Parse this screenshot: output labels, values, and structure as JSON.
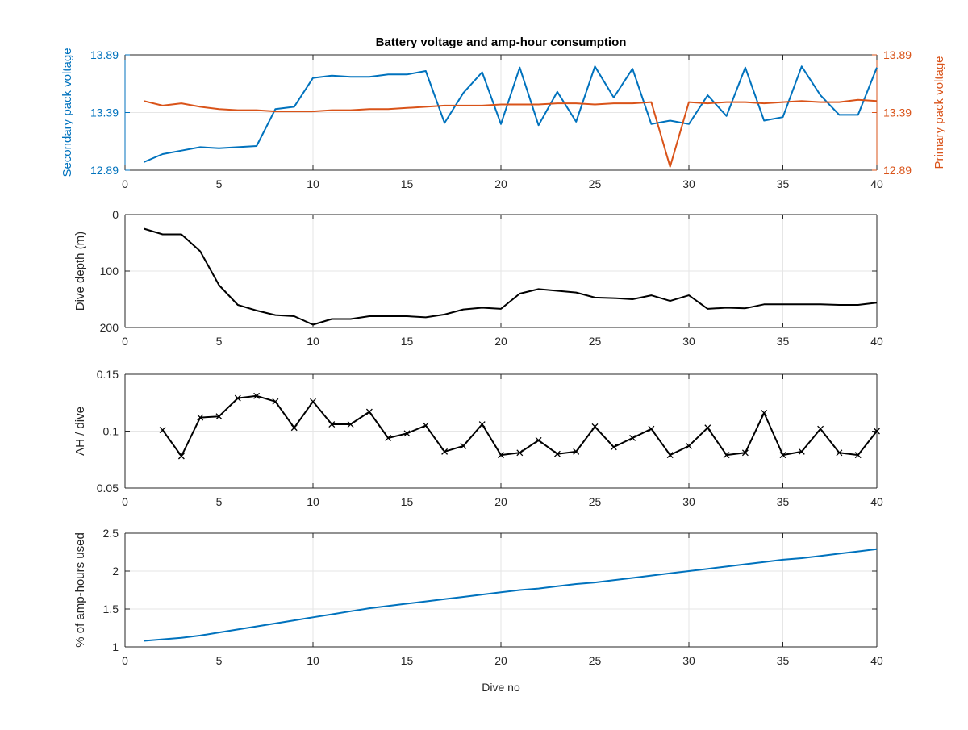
{
  "figure": {
    "title": "Battery voltage and amp-hour consumption",
    "xlabel": "Dive no"
  },
  "colors": {
    "secondary": "#0072BD",
    "primary": "#D95319",
    "black": "#000000",
    "grid": "#e6e6e6"
  },
  "chart_data": [
    {
      "type": "line",
      "title": "Battery voltage and amp-hour consumption",
      "xlabel": "",
      "ylabel": "Secondary pack voltage",
      "ylabel_right": "Primary pack voltage",
      "xlim": [
        0,
        40
      ],
      "ylim": [
        12.89,
        13.89
      ],
      "ylim_right": [
        12.89,
        13.89
      ],
      "xticks": [
        0,
        5,
        10,
        15,
        20,
        25,
        30,
        35,
        40
      ],
      "yticks": [
        12.89,
        13.39,
        13.89
      ],
      "ytick_labels": [
        "12.89",
        "13.39",
        "13.89"
      ],
      "yticks_right": [
        12.89,
        13.39,
        13.89
      ],
      "ytick_labels_right": [
        "12.89",
        "13.39",
        "13.89"
      ],
      "grid": true,
      "series": [
        {
          "name": "Secondary pack voltage",
          "axis": "left",
          "color": "#0072BD",
          "x": [
            1,
            2,
            3,
            4,
            5,
            6,
            7,
            8,
            9,
            10,
            11,
            12,
            13,
            14,
            15,
            16,
            17,
            18,
            19,
            20,
            21,
            22,
            23,
            24,
            25,
            26,
            27,
            28,
            29,
            30,
            31,
            32,
            33,
            34,
            35,
            36,
            37,
            38,
            39,
            40
          ],
          "values": [
            12.96,
            13.03,
            13.06,
            13.09,
            13.08,
            13.09,
            13.1,
            13.42,
            13.44,
            13.69,
            13.71,
            13.7,
            13.7,
            13.72,
            13.72,
            13.75,
            13.3,
            13.56,
            13.74,
            13.29,
            13.78,
            13.28,
            13.57,
            13.31,
            13.79,
            13.52,
            13.77,
            13.29,
            13.32,
            13.29,
            13.54,
            13.36,
            13.78,
            13.32,
            13.35,
            13.79,
            13.54,
            13.37,
            13.37,
            13.78
          ]
        },
        {
          "name": "Primary pack voltage",
          "axis": "right",
          "color": "#D95319",
          "x": [
            1,
            2,
            3,
            4,
            5,
            6,
            7,
            8,
            9,
            10,
            11,
            12,
            13,
            14,
            15,
            16,
            17,
            18,
            19,
            20,
            21,
            22,
            23,
            24,
            25,
            26,
            27,
            28,
            29,
            30,
            31,
            32,
            33,
            34,
            35,
            36,
            37,
            38,
            39,
            40
          ],
          "values": [
            13.49,
            13.45,
            13.47,
            13.44,
            13.42,
            13.41,
            13.41,
            13.4,
            13.4,
            13.4,
            13.41,
            13.41,
            13.42,
            13.42,
            13.43,
            13.44,
            13.45,
            13.45,
            13.45,
            13.46,
            13.46,
            13.46,
            13.47,
            13.47,
            13.46,
            13.47,
            13.47,
            13.48,
            12.92,
            13.48,
            13.47,
            13.48,
            13.48,
            13.47,
            13.48,
            13.49,
            13.48,
            13.48,
            13.5,
            13.49
          ]
        }
      ]
    },
    {
      "type": "line",
      "xlabel": "",
      "ylabel": "Dive depth (m)",
      "xlim": [
        0,
        40
      ],
      "ylim": [
        0,
        200
      ],
      "y_reversed": true,
      "xticks": [
        0,
        5,
        10,
        15,
        20,
        25,
        30,
        35,
        40
      ],
      "yticks": [
        0,
        100,
        200
      ],
      "grid": true,
      "series": [
        {
          "color": "#000000",
          "x": [
            1,
            2,
            3,
            4,
            5,
            6,
            7,
            8,
            9,
            10,
            11,
            12,
            13,
            14,
            15,
            16,
            17,
            18,
            19,
            20,
            21,
            22,
            23,
            24,
            25,
            26,
            27,
            28,
            29,
            30,
            31,
            32,
            33,
            34,
            35,
            36,
            37,
            38,
            39,
            40
          ],
          "values": [
            25,
            35,
            35,
            65,
            125,
            160,
            170,
            178,
            180,
            195,
            185,
            185,
            180,
            180,
            180,
            182,
            177,
            168,
            165,
            167,
            140,
            132,
            135,
            138,
            147,
            148,
            150,
            143,
            153,
            143,
            167,
            165,
            166,
            159,
            159,
            159,
            159,
            160,
            160,
            156
          ]
        }
      ]
    },
    {
      "type": "line",
      "xlabel": "",
      "ylabel": "AH / dive",
      "xlim": [
        0,
        40
      ],
      "ylim": [
        0.05,
        0.15
      ],
      "xticks": [
        0,
        5,
        10,
        15,
        20,
        25,
        30,
        35,
        40
      ],
      "yticks": [
        0.05,
        0.1,
        0.15
      ],
      "ytick_labels": [
        "0.05",
        "0.1",
        "0.15"
      ],
      "grid": true,
      "markers": "x",
      "series": [
        {
          "color": "#000000",
          "x": [
            2,
            3,
            4,
            5,
            6,
            7,
            8,
            9,
            10,
            11,
            12,
            13,
            14,
            15,
            16,
            17,
            18,
            19,
            20,
            21,
            22,
            23,
            24,
            25,
            26,
            27,
            28,
            29,
            30,
            31,
            32,
            33,
            34,
            35,
            36,
            37,
            38,
            39,
            40
          ],
          "values": [
            0.101,
            0.078,
            0.112,
            0.113,
            0.129,
            0.131,
            0.126,
            0.103,
            0.126,
            0.106,
            0.106,
            0.117,
            0.094,
            0.098,
            0.105,
            0.082,
            0.087,
            0.106,
            0.079,
            0.081,
            0.092,
            0.08,
            0.082,
            0.104,
            0.086,
            0.094,
            0.102,
            0.079,
            0.087,
            0.103,
            0.079,
            0.081,
            0.116,
            0.079,
            0.082,
            0.102,
            0.081,
            0.079,
            0.1
          ]
        }
      ]
    },
    {
      "type": "line",
      "xlabel": "Dive no",
      "ylabel": "% of amp-hours used",
      "xlim": [
        0,
        40
      ],
      "ylim": [
        1,
        2.5
      ],
      "xticks": [
        0,
        5,
        10,
        15,
        20,
        25,
        30,
        35,
        40
      ],
      "yticks": [
        1,
        1.5,
        2,
        2.5
      ],
      "ytick_labels": [
        "1",
        "1.5",
        "2",
        "2.5"
      ],
      "grid": true,
      "series": [
        {
          "color": "#0072BD",
          "x": [
            1,
            2,
            3,
            4,
            5,
            6,
            7,
            8,
            9,
            10,
            11,
            12,
            13,
            14,
            15,
            16,
            17,
            18,
            19,
            20,
            21,
            22,
            23,
            24,
            25,
            26,
            27,
            28,
            29,
            30,
            31,
            32,
            33,
            34,
            35,
            36,
            37,
            38,
            39,
            40
          ],
          "values": [
            1.08,
            1.1,
            1.12,
            1.15,
            1.19,
            1.23,
            1.27,
            1.31,
            1.35,
            1.39,
            1.43,
            1.47,
            1.51,
            1.54,
            1.57,
            1.6,
            1.63,
            1.66,
            1.69,
            1.72,
            1.75,
            1.77,
            1.8,
            1.83,
            1.85,
            1.88,
            1.91,
            1.94,
            1.97,
            2.0,
            2.03,
            2.06,
            2.09,
            2.12,
            2.15,
            2.17,
            2.2,
            2.23,
            2.26,
            2.29
          ]
        }
      ]
    }
  ]
}
